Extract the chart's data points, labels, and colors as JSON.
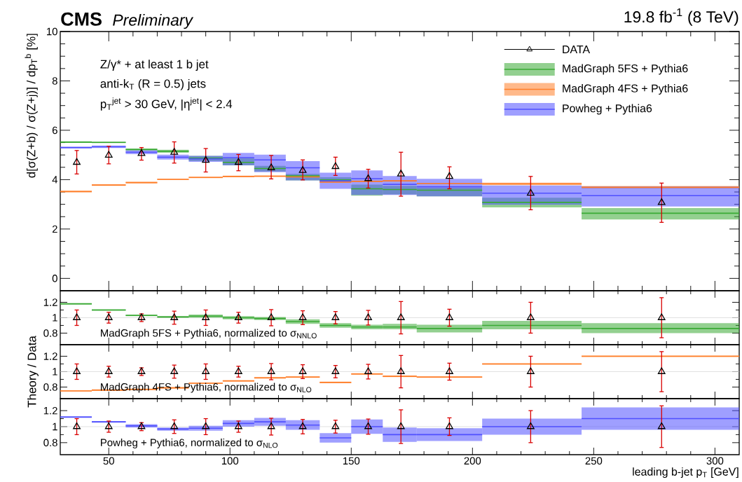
{
  "chart_data": [
    {
      "type": "step",
      "title": "CMS",
      "subtitle": "Preliminary",
      "ylabel": "d[σ(Z+b) / σ(Z+j)] / dp$_{T}$$^{b}$ [%]",
      "annotations": [
        "19.8 fb$^{-1}$ (8 TeV)",
        "Z/γ* + at least 1 b jet",
        "anti-k$_{T}$ (R = 0.5) jets",
        "p$_{T}$$^{jet}$ > 30 GeV, |η$^{jet}$| < 2.4"
      ],
      "xlim": [
        30,
        310
      ],
      "xticks": [
        50,
        100,
        150,
        200,
        250,
        300
      ],
      "ylim": [
        -0.5,
        10
      ],
      "yticks": [
        0,
        2,
        4,
        6,
        8,
        10
      ],
      "tick_labels": "y",
      "legend": "top right",
      "series": [
        {
          "type": "scatter",
          "name": "DATA",
          "color": "#000000",
          "marker": "triangle",
          "x": [
            36.8,
            50,
            63.5,
            77,
            90,
            103.5,
            117,
            130,
            143.5,
            157,
            170.5,
            190.5,
            224,
            278
          ],
          "values": [
            4.7,
            4.99,
            5.06,
            5.11,
            4.78,
            4.7,
            4.48,
            4.37,
            4.53,
            4.04,
            4.23,
            4.13,
            3.45,
            3.07
          ],
          "errors": [
            [
              4.23,
              5.18
            ],
            [
              4.64,
              5.35
            ],
            [
              4.79,
              5.3
            ],
            [
              4.67,
              5.53
            ],
            [
              4.31,
              5.26
            ],
            [
              4.36,
              5.02
            ],
            [
              4.03,
              4.98
            ],
            [
              3.99,
              4.8
            ],
            [
              4.17,
              4.91
            ],
            [
              3.66,
              4.42
            ],
            [
              3.33,
              5.11
            ],
            [
              3.63,
              4.52
            ],
            [
              2.78,
              4.13
            ],
            [
              2.27,
              3.86
            ]
          ]
        },
        {
          "name": "MadGraph 5FS + Pythia6",
          "color": "#3aaa35",
          "x": [
            30,
            43,
            57,
            70,
            83,
            97,
            110,
            123,
            137,
            150,
            163,
            177,
            204,
            245,
            310
          ],
          "values": [
            5.52,
            5.51,
            5.22,
            5.15,
            4.87,
            4.7,
            4.45,
            4.15,
            3.99,
            3.63,
            3.6,
            3.57,
            3.08,
            2.64,
            2.64
          ],
          "lower": [
            5.49,
            5.48,
            5.18,
            5.09,
            4.76,
            4.58,
            4.33,
            3.97,
            3.9,
            3.35,
            3.4,
            3.32,
            2.88,
            2.39,
            2.39
          ],
          "upper": [
            5.55,
            5.54,
            5.26,
            5.21,
            4.96,
            4.86,
            4.56,
            4.23,
            4.1,
            3.8,
            3.75,
            3.67,
            3.27,
            2.85,
            2.85
          ]
        },
        {
          "name": "MadGraph 4FS + Pythia6",
          "color": "#ff7f2a",
          "x": [
            30,
            43,
            57,
            70,
            83,
            97,
            110,
            123,
            137,
            150,
            163,
            177,
            204,
            245,
            310
          ],
          "values": [
            3.52,
            3.78,
            3.88,
            4.01,
            4.09,
            4.13,
            4.14,
            4.11,
            3.9,
            3.93,
            3.95,
            3.84,
            3.83,
            3.69,
            3.69
          ],
          "lower": [
            3.49,
            3.75,
            3.85,
            3.98,
            4.06,
            4.1,
            4.11,
            4.08,
            3.87,
            3.9,
            3.92,
            3.81,
            3.78,
            3.64,
            3.64
          ],
          "upper": [
            3.55,
            3.81,
            3.91,
            4.04,
            4.12,
            4.16,
            4.17,
            4.14,
            3.93,
            3.96,
            3.98,
            3.87,
            3.88,
            3.74,
            3.74
          ]
        },
        {
          "name": "Powheg + Pythia6",
          "color": "#5050ff",
          "x": [
            30,
            43,
            57,
            70,
            83,
            97,
            110,
            123,
            137,
            150,
            163,
            177,
            204,
            245,
            310
          ],
          "values": [
            5.3,
            5.33,
            5.11,
            4.91,
            4.84,
            4.89,
            4.8,
            4.48,
            3.95,
            4.04,
            3.81,
            3.71,
            3.45,
            3.35,
            3.35
          ],
          "lower": [
            5.27,
            5.28,
            5.03,
            4.81,
            4.72,
            4.58,
            4.3,
            3.97,
            3.63,
            3.38,
            3.38,
            3.32,
            2.98,
            2.91,
            2.91
          ],
          "upper": [
            5.33,
            5.38,
            5.19,
            5.01,
            4.96,
            5.08,
            5.01,
            4.75,
            4.28,
            4.37,
            4.15,
            4.03,
            3.76,
            3.73,
            3.73
          ]
        }
      ]
    },
    {
      "type": "step",
      "annotations": [
        "MadGraph 5FS + Pythia6, normalized to σ$_{NNLO}$"
      ],
      "xlim": [
        30,
        310
      ],
      "xticks": [
        50,
        100,
        150,
        200,
        250,
        300
      ],
      "ylim": [
        0.65,
        1.35
      ],
      "yticks": [
        0.8,
        1,
        1.2
      ],
      "tick_labels": "y",
      "ref_lines": [
        {
          "axis": "y",
          "value": 1,
          "color": "#d9d9d9"
        }
      ],
      "series": [
        {
          "color": "#3aaa35",
          "x": [
            30,
            43,
            57,
            70,
            83,
            97,
            110,
            123,
            137,
            150,
            163,
            177,
            204,
            245,
            310
          ],
          "values": [
            1.18,
            1.1,
            1.03,
            1.01,
            1.02,
            1.0,
            0.99,
            0.95,
            0.9,
            0.88,
            0.88,
            0.86,
            0.9,
            0.86,
            0.86
          ],
          "lower": [
            1.17,
            1.09,
            1.02,
            1.0,
            1.0,
            0.98,
            0.97,
            0.92,
            0.87,
            0.85,
            0.85,
            0.81,
            0.85,
            0.8,
            0.8
          ],
          "upper": [
            1.19,
            1.11,
            1.04,
            1.02,
            1.04,
            1.02,
            1.01,
            0.98,
            0.93,
            0.91,
            0.92,
            0.91,
            0.96,
            0.93,
            0.93
          ]
        },
        {
          "type": "scatter",
          "color": "#000000",
          "marker": "triangle",
          "x": [
            36.8,
            50,
            63.5,
            77,
            90,
            103.5,
            117,
            130,
            143.5,
            157,
            170.5,
            190.5,
            224,
            278
          ],
          "values": [
            1,
            1,
            1,
            1,
            1,
            1,
            1,
            1,
            1,
            1,
            1,
            1,
            1,
            1
          ],
          "errors": [
            0.1,
            0.07,
            0.05,
            0.085,
            0.1,
            0.07,
            0.105,
            0.09,
            0.08,
            0.095,
            0.21,
            0.11,
            0.2,
            0.26
          ]
        }
      ]
    },
    {
      "type": "step",
      "ylabel": "Theory / Data",
      "annotations": [
        "MadGraph 4FS + Pythia6, normalized to σ$_{NLO}$"
      ],
      "xlim": [
        30,
        310
      ],
      "xticks": [
        50,
        100,
        150,
        200,
        250,
        300
      ],
      "ylim": [
        0.65,
        1.35
      ],
      "yticks": [
        0.8,
        1,
        1.2
      ],
      "tick_labels": "y",
      "ref_lines": [
        {
          "axis": "y",
          "value": 1,
          "color": "#d9d9d9"
        }
      ],
      "series": [
        {
          "color": "#ff7f2a",
          "x": [
            30,
            43,
            57,
            70,
            83,
            97,
            110,
            123,
            137,
            150,
            163,
            177,
            204,
            245,
            310
          ],
          "values": [
            0.75,
            0.76,
            0.77,
            0.79,
            0.85,
            0.88,
            0.92,
            0.93,
            0.86,
            0.97,
            0.94,
            0.93,
            1.1,
            1.2,
            1.2
          ],
          "lower": [
            0.74,
            0.75,
            0.76,
            0.78,
            0.84,
            0.87,
            0.91,
            0.92,
            0.85,
            0.96,
            0.93,
            0.92,
            1.09,
            1.19,
            1.19
          ],
          "upper": [
            0.76,
            0.77,
            0.78,
            0.8,
            0.86,
            0.89,
            0.93,
            0.94,
            0.87,
            0.98,
            0.95,
            0.94,
            1.11,
            1.21,
            1.21
          ]
        },
        {
          "type": "scatter",
          "color": "#000000",
          "marker": "triangle",
          "x": [
            36.8,
            50,
            63.5,
            77,
            90,
            103.5,
            117,
            130,
            143.5,
            157,
            170.5,
            190.5,
            224,
            278
          ],
          "values": [
            1,
            1,
            1,
            1,
            1,
            1,
            1,
            1,
            1,
            1,
            1,
            1,
            1,
            1
          ],
          "errors": [
            0.1,
            0.07,
            0.05,
            0.085,
            0.1,
            0.07,
            0.105,
            0.09,
            0.08,
            0.095,
            0.21,
            0.11,
            0.2,
            0.26
          ]
        }
      ]
    },
    {
      "type": "step",
      "xlabel": "leading b-jet p$_{T}$ [GeV]",
      "annotations": [
        "Powheg + Pythia6, normalized to σ$_{NLO}$"
      ],
      "xlim": [
        30,
        310
      ],
      "xticks": [
        50,
        100,
        150,
        200,
        250,
        300
      ],
      "ylim": [
        0.65,
        1.35
      ],
      "yticks": [
        0.8,
        1,
        1.2
      ],
      "ref_lines": [
        {
          "axis": "y",
          "value": 1,
          "color": "#d9d9d9"
        }
      ],
      "series": [
        {
          "color": "#5050ff",
          "x": [
            30,
            43,
            57,
            70,
            83,
            97,
            110,
            123,
            137,
            150,
            163,
            177,
            204,
            245,
            310
          ],
          "values": [
            1.12,
            1.06,
            1.01,
            0.97,
            0.98,
            1.04,
            1.06,
            1.02,
            0.86,
            1.0,
            0.9,
            0.9,
            1.0,
            1.1,
            1.1
          ],
          "lower": [
            1.11,
            1.05,
            0.99,
            0.95,
            0.95,
            1.0,
            1.01,
            0.96,
            0.8,
            0.91,
            0.81,
            0.82,
            0.9,
            0.96,
            0.96
          ],
          "upper": [
            1.13,
            1.07,
            1.03,
            0.99,
            1.01,
            1.08,
            1.11,
            1.08,
            0.92,
            1.09,
            0.99,
            0.98,
            1.1,
            1.24,
            1.24
          ]
        },
        {
          "type": "scatter",
          "color": "#000000",
          "marker": "triangle",
          "x": [
            36.8,
            50,
            63.5,
            77,
            90,
            103.5,
            117,
            130,
            143.5,
            157,
            170.5,
            190.5,
            224,
            278
          ],
          "values": [
            1,
            1,
            1,
            1,
            1,
            1,
            1,
            1,
            1,
            1,
            1,
            1,
            1,
            1
          ],
          "errors": [
            0.1,
            0.07,
            0.05,
            0.085,
            0.1,
            0.07,
            0.105,
            0.09,
            0.08,
            0.095,
            0.21,
            0.11,
            0.2,
            0.26
          ]
        }
      ]
    }
  ]
}
